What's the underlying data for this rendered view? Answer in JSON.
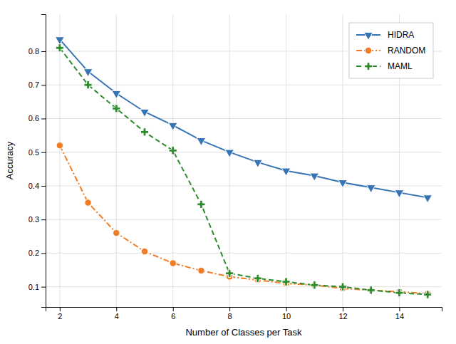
{
  "chart_data": {
    "type": "line",
    "x": [
      2,
      3,
      4,
      5,
      6,
      7,
      8,
      9,
      10,
      11,
      12,
      13,
      14,
      15
    ],
    "series": [
      {
        "name": "HIDRA",
        "color": "#3674b5",
        "marker": "triangle-down",
        "line_style": "solid",
        "values": [
          0.835,
          0.74,
          0.675,
          0.62,
          0.58,
          0.535,
          0.5,
          0.47,
          0.445,
          0.43,
          0.41,
          0.395,
          0.38,
          0.365
        ]
      },
      {
        "name": "RANDOM",
        "color": "#f07d26",
        "marker": "circle",
        "line_style": "dashdot",
        "values": [
          0.52,
          0.35,
          0.26,
          0.205,
          0.17,
          0.148,
          0.13,
          0.12,
          0.11,
          0.105,
          0.095,
          0.09,
          0.085,
          0.08
        ]
      },
      {
        "name": "MAML",
        "color": "#2e8b2e",
        "marker": "plus",
        "line_style": "dashed",
        "values": [
          0.81,
          0.7,
          0.63,
          0.56,
          0.505,
          0.345,
          0.14,
          0.125,
          0.115,
          0.105,
          0.1,
          0.09,
          0.082,
          0.077
        ]
      }
    ],
    "xlabel": "Number of Classes per Task",
    "ylabel": "Accuracy",
    "xlim": [
      1.5,
      15.5
    ],
    "ylim": [
      0.04,
      0.91
    ],
    "xticks": [
      2,
      4,
      6,
      8,
      10,
      12,
      14
    ],
    "yticks": [
      0.1,
      0.2,
      0.3,
      0.4,
      0.5,
      0.6,
      0.7,
      0.8
    ],
    "grid": true,
    "legend": "upper right"
  }
}
